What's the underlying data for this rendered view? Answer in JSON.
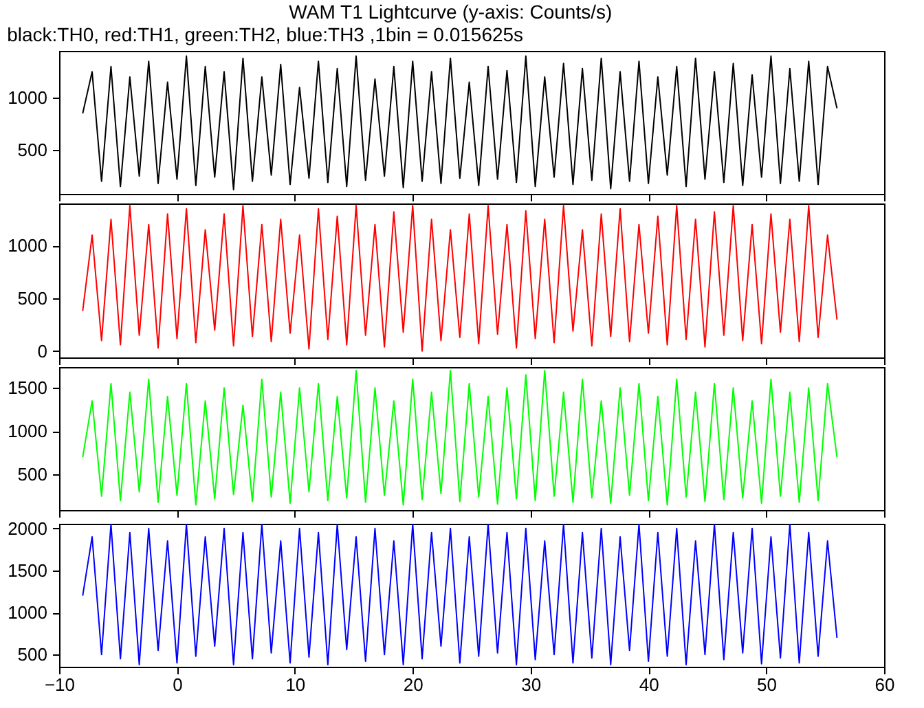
{
  "chart_data": [
    {
      "type": "line",
      "title": "WAM T1 Lightcurve (y-axis: Counts/s)",
      "subtitle": "black:TH0, red:TH1, green:TH2, blue:TH3 ,1bin = 0.015625s",
      "x": [
        -8,
        -7.2,
        -6.4,
        -5.6,
        -4.8,
        -4,
        -3.2,
        -2.4,
        -1.6,
        -0.8,
        0,
        0.8,
        1.6,
        2.4,
        3.2,
        4,
        4.8,
        5.6,
        6.4,
        7.2,
        8,
        8.8,
        9.6,
        10.4,
        11.2,
        12,
        12.8,
        13.6,
        14.4,
        15.2,
        16,
        16.8,
        17.6,
        18.4,
        19.2,
        20,
        20.8,
        21.6,
        22.4,
        23.2,
        24,
        24.8,
        25.6,
        26.4,
        27.2,
        28,
        28.8,
        29.6,
        30.4,
        31.2,
        32,
        32.8,
        33.6,
        34.4,
        35.2,
        36,
        36.8,
        37.6,
        38.4,
        39.2,
        40,
        40.8,
        41.6,
        42.4,
        43.2,
        44,
        44.8,
        45.6,
        46.4,
        47.2,
        48,
        48.8,
        49.6,
        50.4,
        51.2,
        52,
        52.8,
        53.6,
        54.4,
        55.2,
        56
      ],
      "series": [
        {
          "color": "#000000",
          "values": [
            850,
            1250,
            200,
            1300,
            150,
            1200,
            250,
            1350,
            180,
            1150,
            220,
            1400,
            160,
            1300,
            240,
            1250,
            120,
            1380,
            200,
            1200,
            260,
            1320,
            170,
            1100,
            230,
            1350,
            190,
            1280,
            150,
            1400,
            210,
            1180,
            250,
            1300,
            140,
            1350,
            200,
            1250,
            180,
            1380,
            230,
            1150,
            160,
            1300,
            220,
            1260,
            190,
            1400,
            150,
            1200,
            240,
            1330,
            170,
            1280,
            210,
            1380,
            130,
            1250,
            200,
            1350,
            180,
            1200,
            260,
            1300,
            150,
            1380,
            220,
            1250,
            190,
            1330,
            160,
            1220,
            240,
            1400,
            180,
            1280,
            200,
            1350,
            170,
            1300,
            900
          ]
        }
      ],
      "xlim": [
        -10,
        60
      ],
      "xticks": [
        -10,
        0,
        10,
        20,
        30,
        40,
        50,
        60
      ],
      "ylim": [
        80,
        1450
      ],
      "yticks": [
        500,
        1000
      ],
      "tick_labels": "y"
    },
    {
      "type": "line",
      "x": [
        -8,
        -7.2,
        -6.4,
        -5.6,
        -4.8,
        -4,
        -3.2,
        -2.4,
        -1.6,
        -0.8,
        0,
        0.8,
        1.6,
        2.4,
        3.2,
        4,
        4.8,
        5.6,
        6.4,
        7.2,
        8,
        8.8,
        9.6,
        10.4,
        11.2,
        12,
        12.8,
        13.6,
        14.4,
        15.2,
        16,
        16.8,
        17.6,
        18.4,
        19.2,
        20,
        20.8,
        21.6,
        22.4,
        23.2,
        24,
        24.8,
        25.6,
        26.4,
        27.2,
        28,
        28.8,
        29.6,
        30.4,
        31.2,
        32,
        32.8,
        33.6,
        34.4,
        35.2,
        36,
        36.8,
        37.6,
        38.4,
        39.2,
        40,
        40.8,
        41.6,
        42.4,
        43.2,
        44,
        44.8,
        45.6,
        46.4,
        47.2,
        48,
        48.8,
        49.6,
        50.4,
        51.2,
        52,
        52.8,
        53.6,
        54.4,
        55.2,
        56
      ],
      "series": [
        {
          "color": "#ff0000",
          "values": [
            380,
            1100,
            100,
            1250,
            60,
            1380,
            150,
            1200,
            30,
            1300,
            120,
            1350,
            80,
            1150,
            200,
            1300,
            50,
            1380,
            140,
            1200,
            90,
            1250,
            170,
            1100,
            20,
            1350,
            110,
            1280,
            60,
            1380,
            150,
            1200,
            40,
            1320,
            180,
            1380,
            0,
            1250,
            100,
            1150,
            130,
            1300,
            70,
            1380,
            160,
            1200,
            30,
            1330,
            120,
            1250,
            80,
            1380,
            190,
            1150,
            50,
            1300,
            140,
            1350,
            90,
            1200,
            170,
            1280,
            60,
            1380,
            110,
            1250,
            40,
            1320,
            150,
            1380,
            100,
            1200,
            70,
            1300,
            180,
            1250,
            90,
            1380,
            130,
            1100,
            300
          ]
        }
      ],
      "xlim": [
        -10,
        60
      ],
      "xticks": [
        -10,
        0,
        10,
        20,
        30,
        40,
        50,
        60
      ],
      "ylim": [
        -60,
        1400
      ],
      "yticks": [
        0,
        500,
        1000
      ],
      "tick_labels": "y"
    },
    {
      "type": "line",
      "x": [
        -8,
        -7.2,
        -6.4,
        -5.6,
        -4.8,
        -4,
        -3.2,
        -2.4,
        -1.6,
        -0.8,
        0,
        0.8,
        1.6,
        2.4,
        3.2,
        4,
        4.8,
        5.6,
        6.4,
        7.2,
        8,
        8.8,
        9.6,
        10.4,
        11.2,
        12,
        12.8,
        13.6,
        14.4,
        15.2,
        16,
        16.8,
        17.6,
        18.4,
        19.2,
        20,
        20.8,
        21.6,
        22.4,
        23.2,
        24,
        24.8,
        25.6,
        26.4,
        27.2,
        28,
        28.8,
        29.6,
        30.4,
        31.2,
        32,
        32.8,
        33.6,
        34.4,
        35.2,
        36,
        36.8,
        37.6,
        38.4,
        39.2,
        40,
        40.8,
        41.6,
        42.4,
        43.2,
        44,
        44.8,
        45.6,
        46.4,
        47.2,
        48,
        48.8,
        49.6,
        50.4,
        51.2,
        52,
        52.8,
        53.6,
        54.4,
        55.2,
        56
      ],
      "series": [
        {
          "color": "#00ff00",
          "values": [
            700,
            1350,
            250,
            1550,
            200,
            1450,
            300,
            1600,
            180,
            1400,
            260,
            1550,
            150,
            1350,
            220,
            1500,
            270,
            1300,
            190,
            1600,
            240,
            1450,
            170,
            1500,
            300,
            1550,
            200,
            1400,
            230,
            1700,
            180,
            1500,
            260,
            1350,
            150,
            1600,
            210,
            1450,
            280,
            1700,
            190,
            1550,
            240,
            1400,
            160,
            1500,
            220,
            1650,
            200,
            1700,
            250,
            1450,
            180,
            1600,
            230,
            1350,
            170,
            1500,
            260,
            1550,
            200,
            1400,
            150,
            1600,
            240,
            1450,
            190,
            1550,
            210,
            1500,
            230,
            1350,
            170,
            1600,
            250,
            1450,
            180,
            1500,
            200,
            1550,
            700
          ]
        }
      ],
      "xlim": [
        -10,
        60
      ],
      "xticks": [
        -10,
        0,
        10,
        20,
        30,
        40,
        50,
        60
      ],
      "ylim": [
        90,
        1740
      ],
      "yticks": [
        500,
        1000,
        1500
      ],
      "tick_labels": "y"
    },
    {
      "type": "line",
      "x": [
        -8,
        -7.2,
        -6.4,
        -5.6,
        -4.8,
        -4,
        -3.2,
        -2.4,
        -1.6,
        -0.8,
        0,
        0.8,
        1.6,
        2.4,
        3.2,
        4,
        4.8,
        5.6,
        6.4,
        7.2,
        8,
        8.8,
        9.6,
        10.4,
        11.2,
        12,
        12.8,
        13.6,
        14.4,
        15.2,
        16,
        16.8,
        17.6,
        18.4,
        19.2,
        20,
        20.8,
        21.6,
        22.4,
        23.2,
        24,
        24.8,
        25.6,
        26.4,
        27.2,
        28,
        28.8,
        29.6,
        30.4,
        31.2,
        32,
        32.8,
        33.6,
        34.4,
        35.2,
        36,
        36.8,
        37.6,
        38.4,
        39.2,
        40,
        40.8,
        41.6,
        42.4,
        43.2,
        44,
        44.8,
        45.6,
        46.4,
        47.2,
        48,
        48.8,
        49.6,
        50.4,
        51.2,
        52,
        52.8,
        53.6,
        54.4,
        55.2,
        56
      ],
      "series": [
        {
          "color": "#0000ff",
          "values": [
            1200,
            1900,
            500,
            2050,
            450,
            1950,
            380,
            2000,
            550,
            1850,
            400,
            2050,
            480,
            1900,
            600,
            2000,
            380,
            1950,
            450,
            2050,
            520,
            1850,
            400,
            2000,
            470,
            1950,
            380,
            2050,
            560,
            1900,
            420,
            2000,
            500,
            1850,
            380,
            2050,
            450,
            1950,
            600,
            2000,
            400,
            1900,
            480,
            2050,
            520,
            1950,
            380,
            2000,
            440,
            1850,
            500,
            2050,
            400,
            1950,
            460,
            2000,
            380,
            1900,
            550,
            2050,
            420,
            1950,
            480,
            2000,
            380,
            1850,
            500,
            2050,
            440,
            1950,
            520,
            2000,
            390,
            1900,
            460,
            2050,
            400,
            1950,
            480,
            1850,
            700
          ]
        }
      ],
      "xlim": [
        -10,
        60
      ],
      "xticks": [
        -10,
        0,
        10,
        20,
        30,
        40,
        50,
        60
      ],
      "ylim": [
        355,
        2055
      ],
      "yticks": [
        500,
        1000,
        1500,
        2000
      ]
    }
  ]
}
